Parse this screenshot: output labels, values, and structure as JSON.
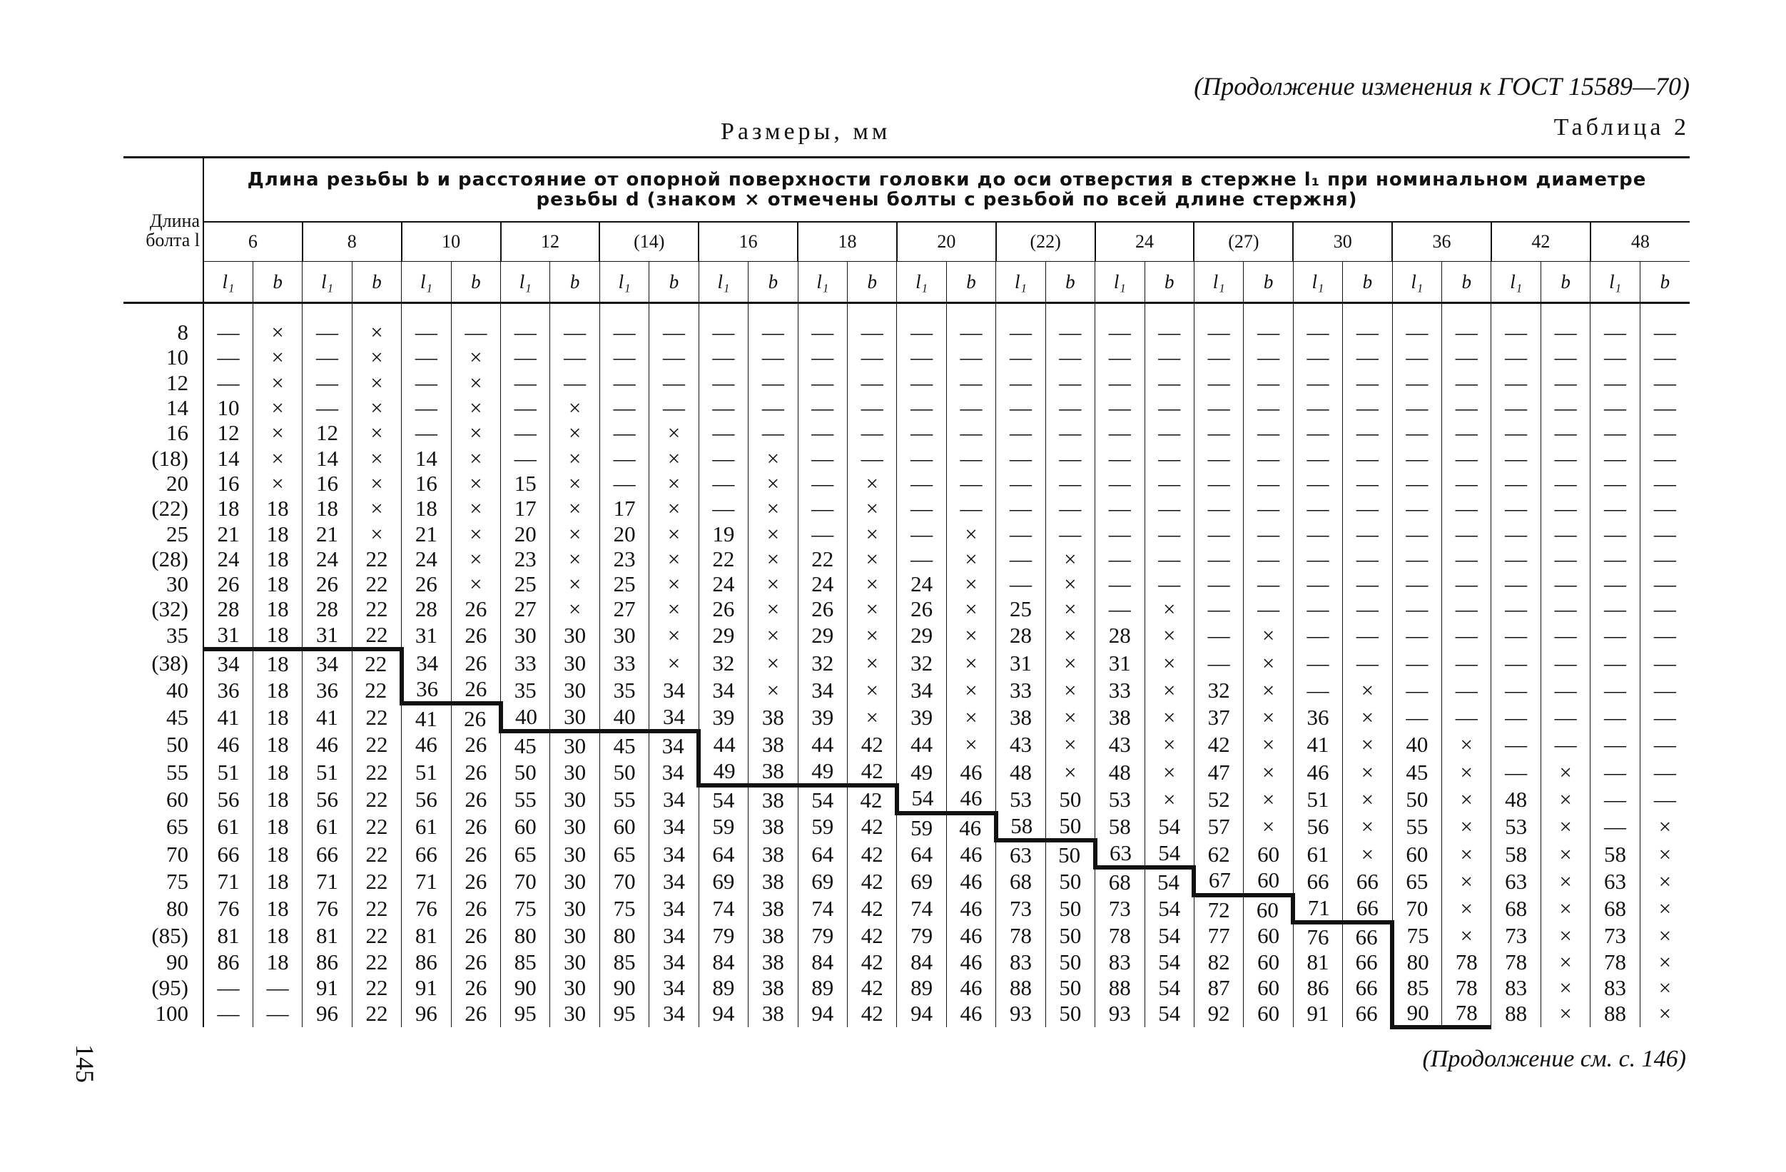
{
  "header": {
    "continuation": "(Продолжение изменения к ГОСТ 15589—70)",
    "units": "Размеры, мм",
    "table_no": "Таблица 2"
  },
  "table": {
    "corner": "Длина болта l",
    "caption": "Длина резьбы b и расстояние от опорной поверхности головки до оси отверстия в стержне l₁ при номинальном диаметре резьбы d (знаком × отмечены болты с резьбой по всей длине стержня)",
    "sub_headers": [
      "l₁",
      "b"
    ],
    "row_labels": [
      "8",
      "10",
      "12",
      "14",
      "16",
      "(18)",
      "20",
      "(22)",
      "25",
      "(28)",
      "30",
      "(32)",
      "35",
      "(38)",
      "40",
      "45",
      "50",
      "55",
      "60",
      "65",
      "70",
      "75",
      "80",
      "(85)",
      "90",
      "(95)",
      "100"
    ],
    "groups": [
      {
        "d": "6",
        "l1": [
          "—",
          "—",
          "—",
          10,
          12,
          14,
          16,
          18,
          21,
          24,
          26,
          28,
          31,
          34,
          36,
          41,
          46,
          51,
          56,
          61,
          66,
          71,
          76,
          81,
          86,
          "—",
          "—"
        ],
        "b": [
          "×",
          "×",
          "×",
          "×",
          "×",
          "×",
          "×",
          18,
          18,
          18,
          18,
          18,
          18,
          18,
          18,
          18,
          18,
          18,
          18,
          18,
          18,
          18,
          18,
          18,
          18,
          "—",
          "—"
        ]
      },
      {
        "d": "8",
        "l1": [
          "—",
          "—",
          "—",
          "—",
          12,
          14,
          16,
          18,
          21,
          24,
          26,
          28,
          31,
          34,
          36,
          41,
          46,
          51,
          56,
          61,
          66,
          71,
          76,
          81,
          86,
          91,
          96
        ],
        "b": [
          "×",
          "×",
          "×",
          "×",
          "×",
          "×",
          "×",
          "×",
          "×",
          22,
          22,
          22,
          22,
          22,
          22,
          22,
          22,
          22,
          22,
          22,
          22,
          22,
          22,
          22,
          22,
          22,
          22
        ]
      },
      {
        "d": "10",
        "l1": [
          "—",
          "—",
          "—",
          "—",
          "—",
          14,
          16,
          18,
          21,
          24,
          26,
          28,
          31,
          34,
          36,
          41,
          46,
          51,
          56,
          61,
          66,
          71,
          76,
          81,
          86,
          91,
          96
        ],
        "b": [
          "—",
          "×",
          "×",
          "×",
          "×",
          "×",
          "×",
          "×",
          "×",
          "×",
          "×",
          26,
          26,
          26,
          26,
          26,
          26,
          26,
          26,
          26,
          26,
          26,
          26,
          26,
          26,
          26,
          26
        ]
      },
      {
        "d": "12",
        "l1": [
          "—",
          "—",
          "—",
          "—",
          "—",
          "—",
          15,
          17,
          20,
          23,
          25,
          27,
          30,
          33,
          35,
          40,
          45,
          50,
          55,
          60,
          65,
          70,
          75,
          80,
          85,
          90,
          95
        ],
        "b": [
          "—",
          "—",
          "—",
          "×",
          "×",
          "×",
          "×",
          "×",
          "×",
          "×",
          "×",
          "×",
          30,
          30,
          30,
          30,
          30,
          30,
          30,
          30,
          30,
          30,
          30,
          30,
          30,
          30,
          30
        ]
      },
      {
        "d": "(14)",
        "l1": [
          "—",
          "—",
          "—",
          "—",
          "—",
          "—",
          "—",
          17,
          20,
          23,
          25,
          27,
          30,
          33,
          35,
          40,
          45,
          50,
          55,
          60,
          65,
          70,
          75,
          80,
          85,
          90,
          95
        ],
        "b": [
          "—",
          "—",
          "—",
          "—",
          "×",
          "×",
          "×",
          "×",
          "×",
          "×",
          "×",
          "×",
          "×",
          "×",
          34,
          34,
          34,
          34,
          34,
          34,
          34,
          34,
          34,
          34,
          34,
          34,
          34
        ]
      },
      {
        "d": "16",
        "l1": [
          "—",
          "—",
          "—",
          "—",
          "—",
          "—",
          "—",
          "—",
          19,
          22,
          24,
          26,
          29,
          32,
          34,
          39,
          44,
          49,
          54,
          59,
          64,
          69,
          74,
          79,
          84,
          89,
          94
        ],
        "b": [
          "—",
          "—",
          "—",
          "—",
          "—",
          "×",
          "×",
          "×",
          "×",
          "×",
          "×",
          "×",
          "×",
          "×",
          "×",
          38,
          38,
          38,
          38,
          38,
          38,
          38,
          38,
          38,
          38,
          38,
          38
        ]
      },
      {
        "d": "18",
        "l1": [
          "—",
          "—",
          "—",
          "—",
          "—",
          "—",
          "—",
          "—",
          "—",
          22,
          24,
          26,
          29,
          32,
          34,
          39,
          44,
          49,
          54,
          59,
          64,
          69,
          74,
          79,
          84,
          89,
          94
        ],
        "b": [
          "—",
          "—",
          "—",
          "—",
          "—",
          "—",
          "×",
          "×",
          "×",
          "×",
          "×",
          "×",
          "×",
          "×",
          "×",
          "×",
          42,
          42,
          42,
          42,
          42,
          42,
          42,
          42,
          42,
          42,
          42
        ]
      },
      {
        "d": "20",
        "l1": [
          "—",
          "—",
          "—",
          "—",
          "—",
          "—",
          "—",
          "—",
          "—",
          "—",
          24,
          26,
          29,
          32,
          34,
          39,
          44,
          49,
          54,
          59,
          64,
          69,
          74,
          79,
          84,
          89,
          94
        ],
        "b": [
          "—",
          "—",
          "—",
          "—",
          "—",
          "—",
          "—",
          "—",
          "×",
          "×",
          "×",
          "×",
          "×",
          "×",
          "×",
          "×",
          "×",
          46,
          46,
          46,
          46,
          46,
          46,
          46,
          46,
          46,
          46
        ]
      },
      {
        "d": "(22)",
        "l1": [
          "—",
          "—",
          "—",
          "—",
          "—",
          "—",
          "—",
          "—",
          "—",
          "—",
          "—",
          25,
          28,
          31,
          33,
          38,
          43,
          48,
          53,
          58,
          63,
          68,
          73,
          78,
          83,
          88,
          93
        ],
        "b": [
          "—",
          "—",
          "—",
          "—",
          "—",
          "—",
          "—",
          "—",
          "—",
          "×",
          "×",
          "×",
          "×",
          "×",
          "×",
          "×",
          "×",
          "×",
          50,
          50,
          50,
          50,
          50,
          50,
          50,
          50,
          50
        ]
      },
      {
        "d": "24",
        "l1": [
          "—",
          "—",
          "—",
          "—",
          "—",
          "—",
          "—",
          "—",
          "—",
          "—",
          "—",
          "—",
          28,
          31,
          33,
          38,
          43,
          48,
          53,
          58,
          63,
          68,
          73,
          78,
          83,
          88,
          93
        ],
        "b": [
          "—",
          "—",
          "—",
          "—",
          "—",
          "—",
          "—",
          "—",
          "—",
          "—",
          "—",
          "×",
          "×",
          "×",
          "×",
          "×",
          "×",
          "×",
          "×",
          54,
          54,
          54,
          54,
          54,
          54,
          54,
          54
        ]
      },
      {
        "d": "(27)",
        "l1": [
          "—",
          "—",
          "—",
          "—",
          "—",
          "—",
          "—",
          "—",
          "—",
          "—",
          "—",
          "—",
          "—",
          "—",
          32,
          37,
          42,
          47,
          52,
          57,
          62,
          67,
          72,
          77,
          82,
          87,
          92
        ],
        "b": [
          "—",
          "—",
          "—",
          "—",
          "—",
          "—",
          "—",
          "—",
          "—",
          "—",
          "—",
          "—",
          "×",
          "×",
          "×",
          "×",
          "×",
          "×",
          "×",
          "×",
          60,
          60,
          60,
          60,
          60,
          60,
          60
        ]
      },
      {
        "d": "30",
        "l1": [
          "—",
          "—",
          "—",
          "—",
          "—",
          "—",
          "—",
          "—",
          "—",
          "—",
          "—",
          "—",
          "—",
          "—",
          "—",
          36,
          41,
          46,
          51,
          56,
          61,
          66,
          71,
          76,
          81,
          86,
          91
        ],
        "b": [
          "—",
          "—",
          "—",
          "—",
          "—",
          "—",
          "—",
          "—",
          "—",
          "—",
          "—",
          "—",
          "—",
          "—",
          "×",
          "×",
          "×",
          "×",
          "×",
          "×",
          "×",
          66,
          66,
          66,
          66,
          66,
          66
        ]
      },
      {
        "d": "36",
        "l1": [
          "—",
          "—",
          "—",
          "—",
          "—",
          "—",
          "—",
          "—",
          "—",
          "—",
          "—",
          "—",
          "—",
          "—",
          "—",
          "—",
          40,
          45,
          50,
          55,
          60,
          65,
          70,
          75,
          80,
          85,
          90
        ],
        "b": [
          "—",
          "—",
          "—",
          "—",
          "—",
          "—",
          "—",
          "—",
          "—",
          "—",
          "—",
          "—",
          "—",
          "—",
          "—",
          "—",
          "×",
          "×",
          "×",
          "×",
          "×",
          "×",
          "×",
          "×",
          78,
          78,
          78
        ]
      },
      {
        "d": "42",
        "l1": [
          "—",
          "—",
          "—",
          "—",
          "—",
          "—",
          "—",
          "—",
          "—",
          "—",
          "—",
          "—",
          "—",
          "—",
          "—",
          "—",
          "—",
          "—",
          48,
          53,
          58,
          63,
          68,
          73,
          78,
          83,
          88
        ],
        "b": [
          "—",
          "—",
          "—",
          "—",
          "—",
          "—",
          "—",
          "—",
          "—",
          "—",
          "—",
          "—",
          "—",
          "—",
          "—",
          "—",
          "—",
          "×",
          "×",
          "×",
          "×",
          "×",
          "×",
          "×",
          "×",
          "×",
          "×"
        ]
      },
      {
        "d": "48",
        "l1": [
          "—",
          "—",
          "—",
          "—",
          "—",
          "—",
          "—",
          "—",
          "—",
          "—",
          "—",
          "—",
          "—",
          "—",
          "—",
          "—",
          "—",
          "—",
          "—",
          "—",
          58,
          63,
          68,
          73,
          78,
          83,
          88
        ],
        "b": [
          "—",
          "—",
          "—",
          "—",
          "—",
          "—",
          "—",
          "—",
          "—",
          "—",
          "—",
          "—",
          "—",
          "—",
          "—",
          "—",
          "—",
          "—",
          "—",
          "×",
          "×",
          "×",
          "×",
          "×",
          "×",
          "×",
          "×"
        ]
      }
    ]
  },
  "footer": {
    "continuation": "(Продолжение см. с. 146)",
    "page_number": "145"
  }
}
